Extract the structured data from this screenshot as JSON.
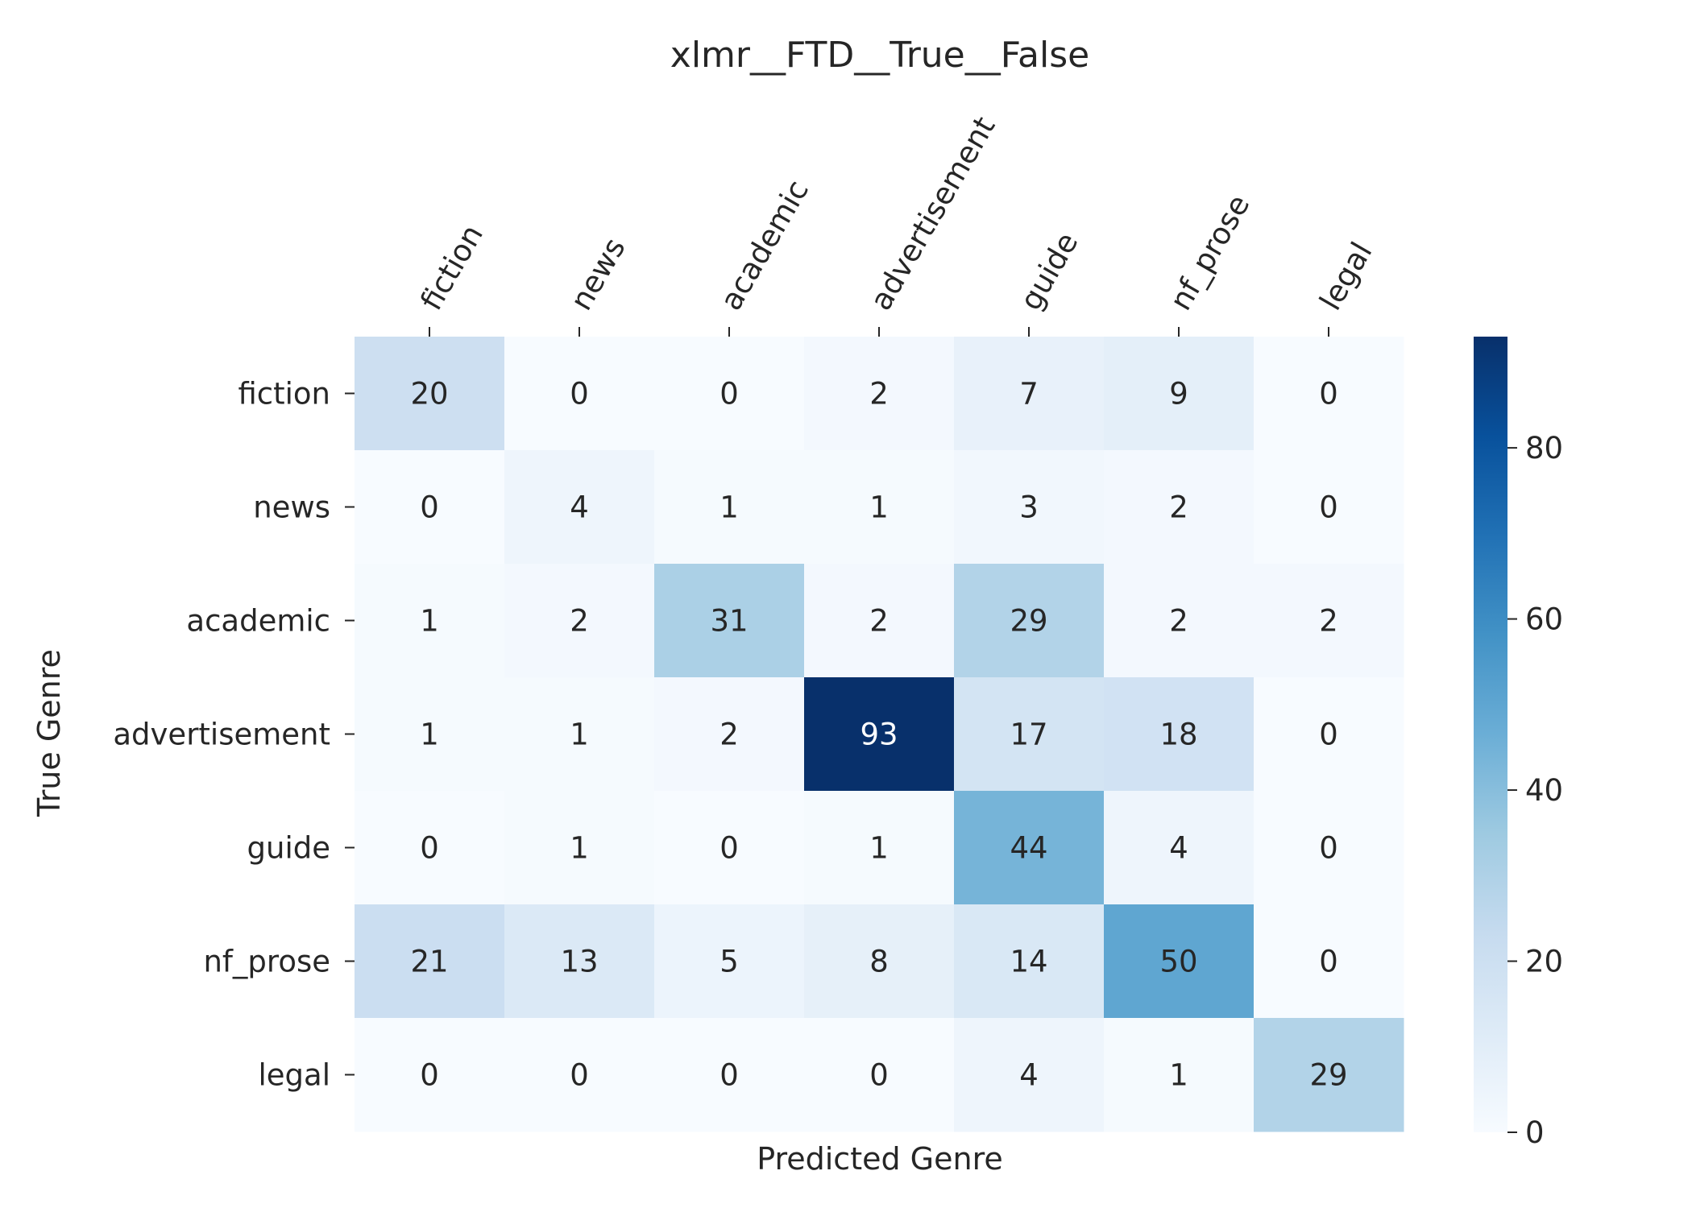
{
  "chart_data": {
    "type": "heatmap",
    "title": "xlmr__FTD__True__False",
    "xlabel": "Predicted Genre",
    "ylabel": "True Genre",
    "x_categories": [
      "fiction",
      "news",
      "academic",
      "advertisement",
      "guide",
      "nf_prose",
      "legal"
    ],
    "y_categories": [
      "fiction",
      "news",
      "academic",
      "advertisement",
      "guide",
      "nf_prose",
      "legal"
    ],
    "values": [
      [
        20,
        0,
        0,
        2,
        7,
        9,
        0
      ],
      [
        0,
        4,
        1,
        1,
        3,
        2,
        0
      ],
      [
        1,
        2,
        31,
        2,
        29,
        2,
        2
      ],
      [
        1,
        1,
        2,
        93,
        17,
        18,
        0
      ],
      [
        0,
        1,
        0,
        1,
        44,
        4,
        0
      ],
      [
        21,
        13,
        5,
        8,
        14,
        50,
        0
      ],
      [
        0,
        0,
        0,
        0,
        4,
        1,
        29
      ]
    ],
    "colormap": "Blues",
    "vmin": 0,
    "vmax": 93,
    "colorbar_ticks": [
      0,
      20,
      40,
      60,
      80
    ],
    "x_tick_position": "top",
    "grid": false
  }
}
